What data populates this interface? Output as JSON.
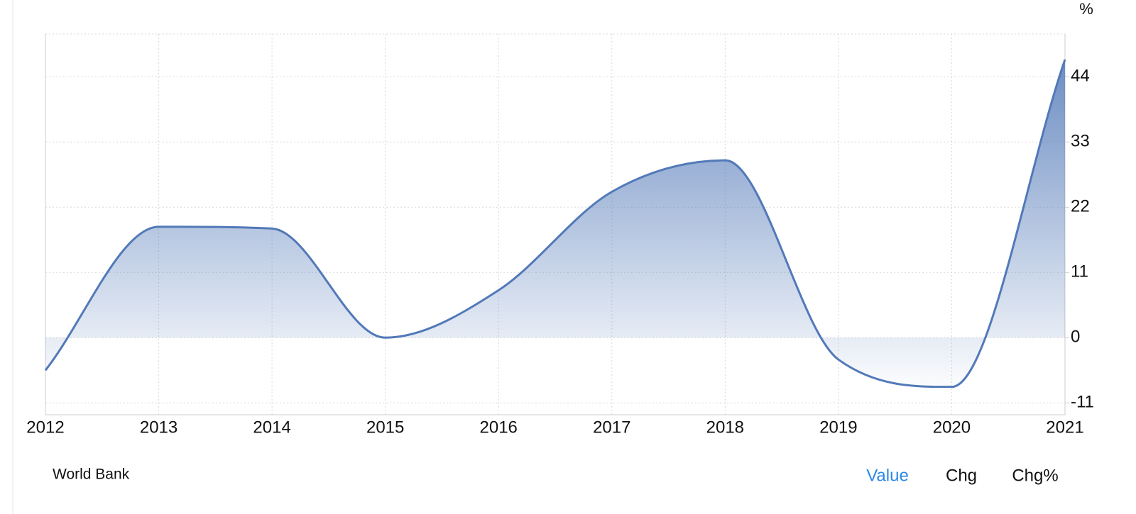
{
  "chart_data": {
    "type": "area",
    "unit": "%",
    "x": [
      2012,
      2013,
      2014,
      2015,
      2016,
      2017,
      2018,
      2019,
      2020,
      2021
    ],
    "xlim": [
      2012,
      2021
    ],
    "xticks": [
      2012,
      2013,
      2014,
      2015,
      2016,
      2017,
      2018,
      2019,
      2020,
      2021
    ],
    "series": [
      {
        "color": "#5279b8",
        "values": [
          -5.5,
          18.7,
          18.4,
          0,
          8.0,
          24.6,
          29.9,
          -3.7,
          -8.3,
          46.9
        ]
      }
    ],
    "ylim": [
      -13,
      51.2
    ],
    "yticks": [
      -11,
      0,
      11,
      22,
      33,
      44
    ],
    "grid": true,
    "source": "World Bank",
    "tabs": [
      "Value",
      "Chg",
      "Chg%"
    ]
  }
}
